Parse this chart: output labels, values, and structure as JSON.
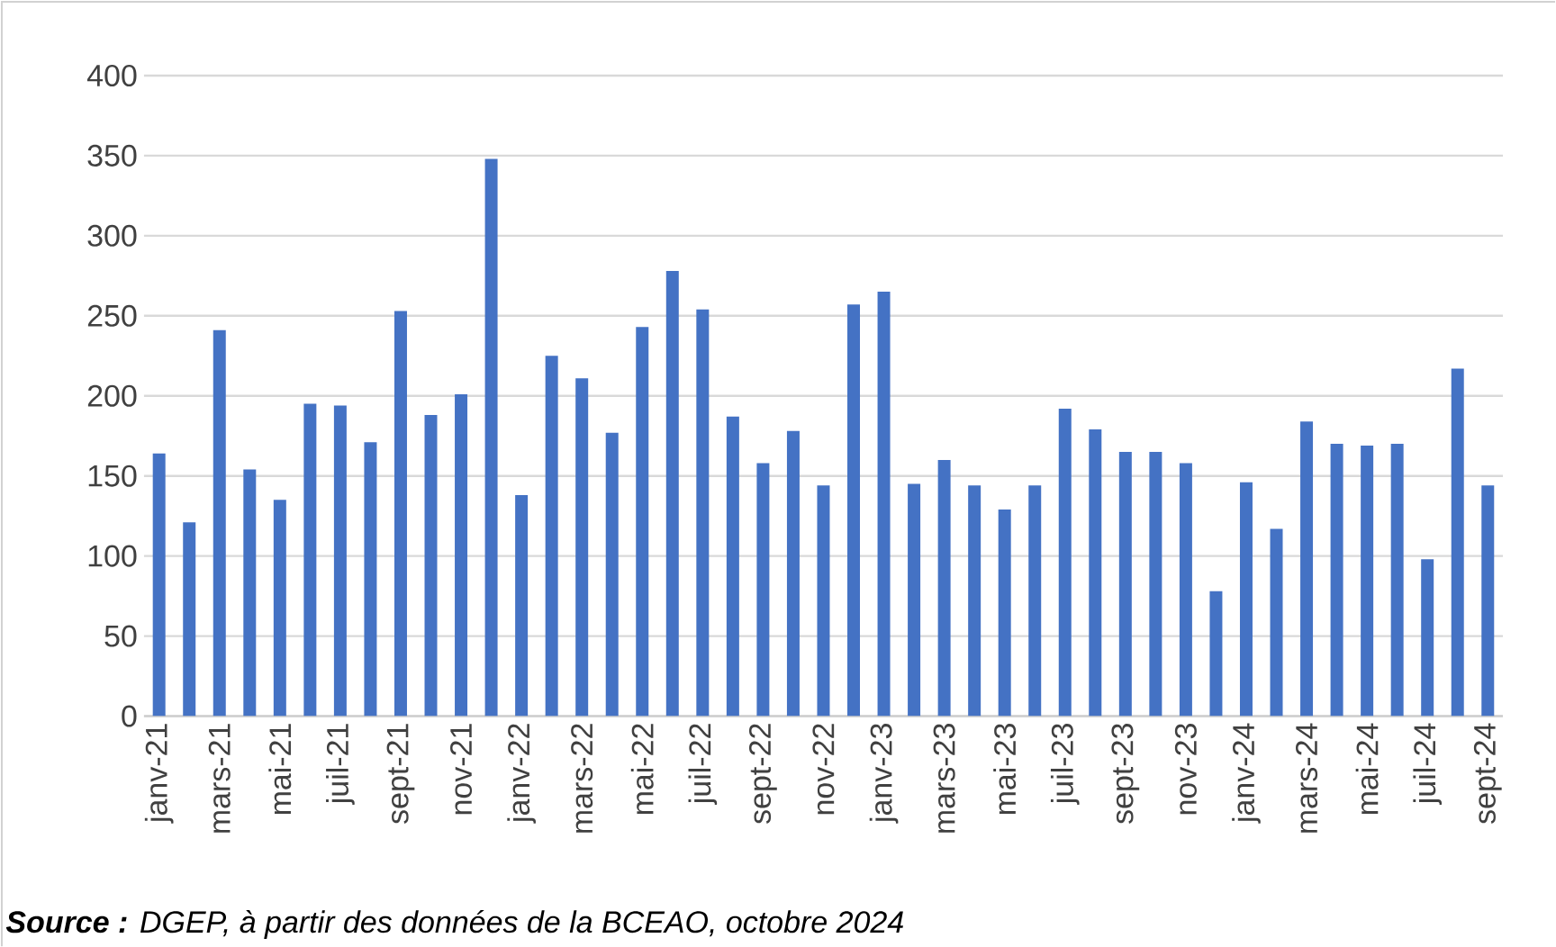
{
  "chart_data": {
    "type": "bar",
    "categories": [
      "janv-21",
      null,
      "mars-21",
      null,
      "mai-21",
      null,
      "juil-21",
      null,
      "sept-21",
      null,
      "nov-21",
      null,
      "janv-22",
      null,
      "mars-22",
      null,
      "mai-22",
      null,
      "juil-22",
      null,
      "sept-22",
      null,
      "nov-22",
      null,
      "janv-23",
      null,
      "mars-23",
      null,
      "mai-23",
      null,
      "juil-23",
      null,
      "sept-23",
      null,
      "nov-23",
      null,
      "janv-24",
      null,
      "mars-24",
      null,
      "mai-24",
      null,
      "juil-24",
      null,
      "sept-24"
    ],
    "values": [
      164,
      121,
      241,
      154,
      135,
      195,
      194,
      171,
      253,
      188,
      201,
      348,
      138,
      225,
      211,
      177,
      243,
      278,
      254,
      187,
      158,
      178,
      144,
      257,
      265,
      145,
      160,
      144,
      129,
      144,
      192,
      179,
      165,
      165,
      158,
      78,
      146,
      117,
      184,
      170,
      169,
      170,
      98,
      217,
      144
    ],
    "color": "#4472c4",
    "ylim": [
      0,
      400
    ],
    "yticks": [
      0,
      50,
      100,
      150,
      200,
      250,
      300,
      350,
      400
    ],
    "grid": "y",
    "annotations": [
      "**Source :** DGEP, à partir des données de la BCEAO, octobre 2024"
    ]
  }
}
